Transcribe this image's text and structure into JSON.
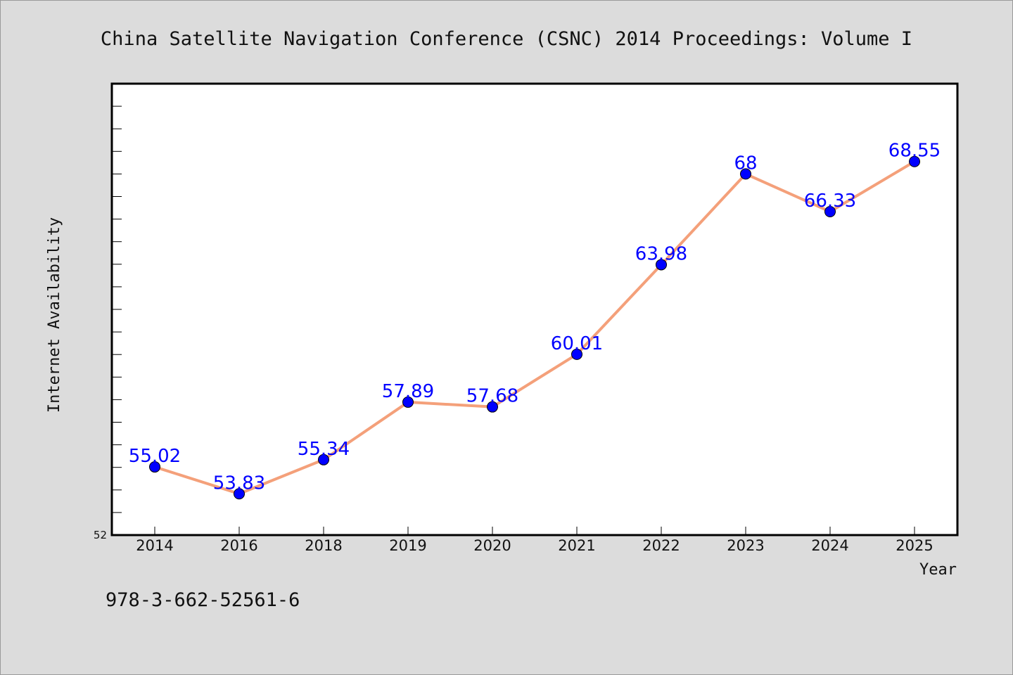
{
  "footer": {
    "isbn": "978-3-662-52561-6"
  },
  "colors": {
    "background": "#dcdcdc",
    "plot_bg": "#ffffff",
    "line": "#f4a07a",
    "marker": "#0000ff",
    "label": "#0000ff"
  },
  "chart_data": {
    "type": "line",
    "title": "China Satellite Navigation Conference (CSNC) 2014 Proceedings: Volume I",
    "xlabel": "Year",
    "ylabel": "Internet Availability",
    "categories": [
      "2014",
      "2016",
      "2018",
      "2019",
      "2020",
      "2021",
      "2022",
      "2023",
      "2024",
      "2025"
    ],
    "series": [
      {
        "values": [
          55.02,
          53.83,
          55.34,
          57.89,
          57.68,
          60.01,
          63.98,
          68,
          66.33,
          68.55
        ]
      }
    ],
    "data_labels": [
      "55.02",
      "53.83",
      "55.34",
      "57.89",
      "57.68",
      "60.01",
      "63.98",
      "68",
      "66.33",
      "68.55"
    ],
    "ylim": [
      52,
      72
    ],
    "y_tick_labels": [
      "52"
    ],
    "grid": false,
    "legend": "none"
  }
}
